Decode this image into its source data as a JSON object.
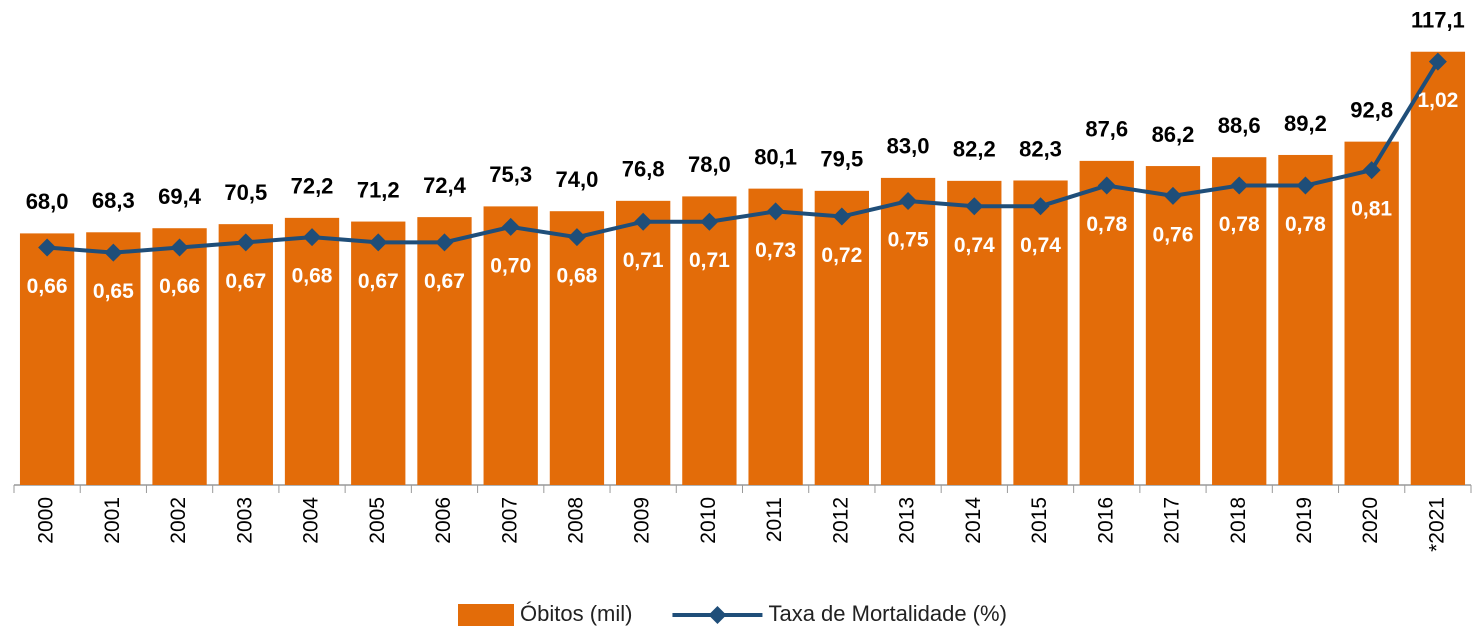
{
  "chart_data": {
    "type": "bar-line",
    "categories": [
      "2000",
      "2001",
      "2002",
      "2003",
      "2004",
      "2005",
      "2006",
      "2007",
      "2008",
      "2009",
      "2010",
      "2011",
      "2012",
      "2013",
      "2014",
      "2015",
      "2016",
      "2017",
      "2018",
      "2019",
      "2020",
      "*2021"
    ],
    "series": [
      {
        "name": "Óbitos (mil)",
        "type": "bar",
        "color": "#e36c09",
        "values": [
          68.0,
          68.3,
          69.4,
          70.5,
          72.2,
          71.2,
          72.4,
          75.3,
          74.0,
          76.8,
          78.0,
          80.1,
          79.5,
          83.0,
          82.2,
          82.3,
          87.6,
          86.2,
          88.6,
          89.2,
          92.8,
          117.1
        ],
        "value_labels": [
          "68,0",
          "68,3",
          "69,4",
          "70,5",
          "72,2",
          "71,2",
          "72,4",
          "75,3",
          "74,0",
          "76,8",
          "78,0",
          "80,1",
          "79,5",
          "83,0",
          "82,2",
          "82,3",
          "87,6",
          "86,2",
          "88,6",
          "89,2",
          "92,8",
          "117,1"
        ]
      },
      {
        "name": "Taxa de Mortalidade (%)",
        "type": "line",
        "axis": "y2",
        "color": "#1f4e79",
        "values": [
          0.66,
          0.65,
          0.66,
          0.67,
          0.68,
          0.67,
          0.67,
          0.7,
          0.68,
          0.71,
          0.71,
          0.73,
          0.72,
          0.75,
          0.74,
          0.74,
          0.78,
          0.76,
          0.78,
          0.78,
          0.81,
          1.02
        ],
        "value_labels": [
          "0,66",
          "0,65",
          "0,66",
          "0,67",
          "0,68",
          "0,67",
          "0,67",
          "0,70",
          "0,68",
          "0,71",
          "0,71",
          "0,73",
          "0,72",
          "0,75",
          "0,74",
          "0,74",
          "0,78",
          "0,76",
          "0,78",
          "0,78",
          "0,81",
          "1,02"
        ]
      }
    ],
    "ylim": [
      0,
      120
    ],
    "y2lim": [
      0.2,
      1.06
    ],
    "legend": "bottom"
  }
}
